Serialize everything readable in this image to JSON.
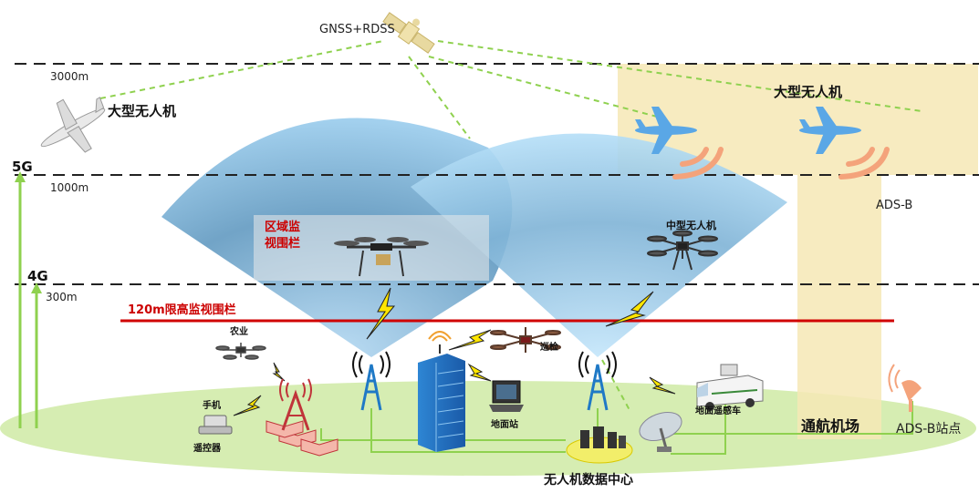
{
  "satellite_label": "GNSS+RDSS",
  "altitudes": {
    "a3000": "3000m",
    "a1000": "1000m",
    "a300": "300m"
  },
  "networks": {
    "g5": "5G",
    "g4": "4G"
  },
  "labels": {
    "large_uav_left": "大型无人机",
    "large_uav_right": "大型无人机",
    "ads_b": "ADS-B",
    "zone_fence_line1": "区域监",
    "zone_fence_line2": "视围栏",
    "medium_uav": "中型无人机",
    "height_fence": "120m限高监视围栏",
    "agriculture": "农业",
    "patrol": "巡检",
    "phone": "手机",
    "remote_controller": "遥控器",
    "ground_station": "地面站",
    "remote_sensing_vehicle": "地面遥感车",
    "general_airport": "通航机场",
    "ads_b_site": "ADS-B站点",
    "data_center": "无人机数据中心"
  },
  "colors": {
    "ground": "#d6edb2",
    "cone": "#7cb4d6",
    "airport_band": "#f6e7b5",
    "fence_red": "#d00000",
    "link_green": "#8fd14f",
    "plane_blue": "#5aa7e6",
    "signal_orange": "#f4a37b",
    "lightning_yellow": "#ffe600",
    "tower_blue": "#1f79c6",
    "tower_red": "#c0343a"
  },
  "icons": [
    "satellite-icon",
    "fixed-wing-uav-icon",
    "airliner-icon",
    "quadcopter-icon",
    "hexacopter-icon",
    "signal-tower-icon",
    "cell-tower-icon",
    "building-icon",
    "laptop-icon",
    "van-icon",
    "dish-icon",
    "server-icon",
    "phone-icon",
    "lightning-icon"
  ]
}
